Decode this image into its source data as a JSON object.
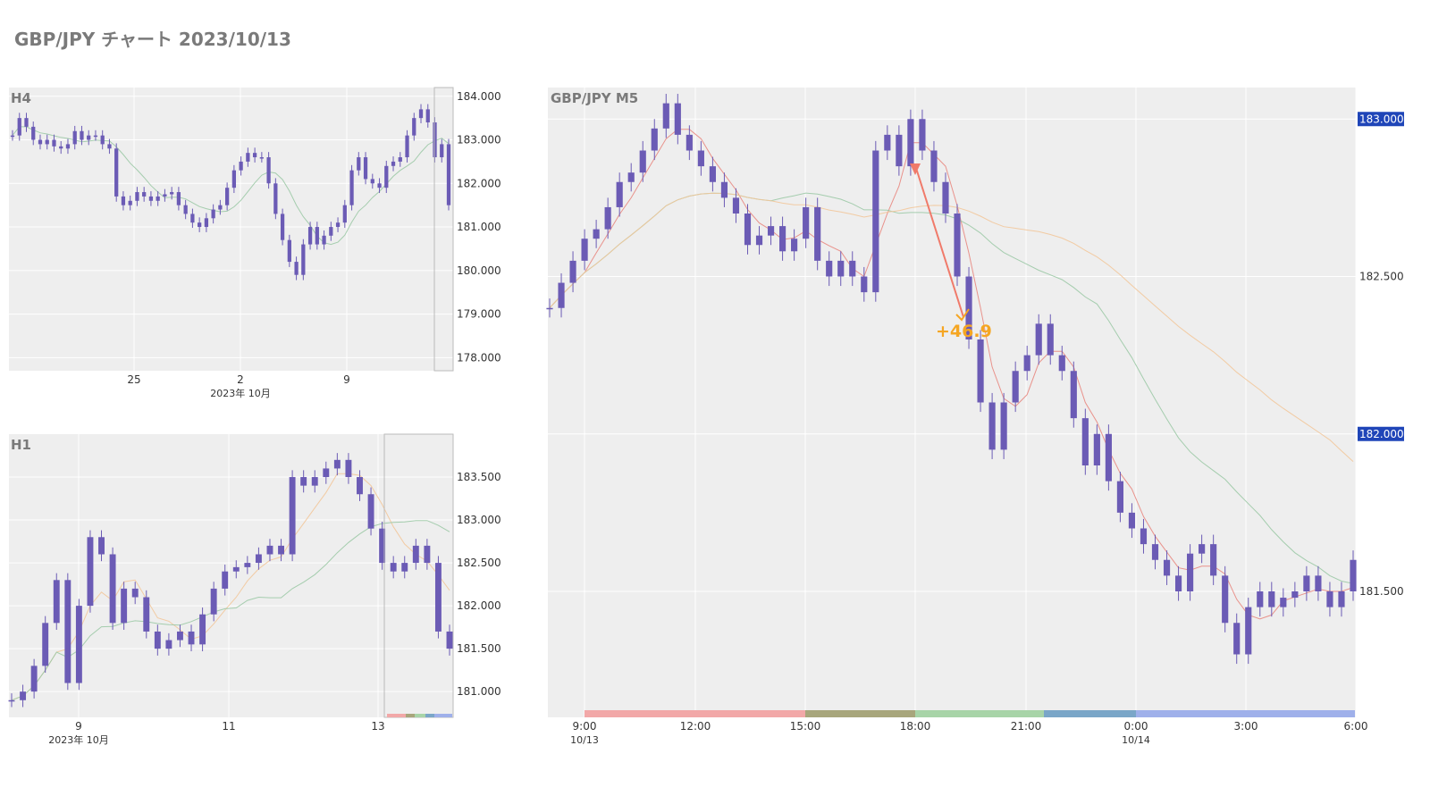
{
  "page": {
    "title": "GBP/JPY チャート 2023/10/13"
  },
  "colors": {
    "candle": "#6b5bb5",
    "plot_bg": "#eeeeee",
    "grid": "#ffffff",
    "ma_fast": "#e8877f",
    "ma_mid": "#9cc9a6",
    "ma_slow": "#f2c79a",
    "price_badge": "#1f45b8",
    "annotation": "#f5a623",
    "trade_line": "#f07a6a"
  },
  "chart_data": [
    {
      "panel": "H4",
      "type": "candlestick",
      "title": "H4",
      "x_ticks": [
        "25",
        "2",
        "9"
      ],
      "x_subtitle": "2023年 10月",
      "y_ticks": [
        "184.000",
        "183.000",
        "182.000",
        "181.000",
        "180.000",
        "179.000",
        "178.000"
      ],
      "ylim": [
        177.7,
        184.2
      ],
      "series": [
        {
          "values": [
            183.1,
            183.5,
            183.3,
            183.0,
            182.9,
            183.0,
            182.85,
            182.8,
            182.9,
            183.2,
            183.0,
            183.1,
            183.1,
            182.9,
            182.8,
            181.7,
            181.5,
            181.6,
            181.8,
            181.7,
            181.6,
            181.7,
            181.75,
            181.8,
            181.5,
            181.3,
            181.1,
            181.0,
            181.2,
            181.4,
            181.5,
            181.9,
            182.3,
            182.5,
            182.7,
            182.6,
            182.6,
            182.0,
            181.3,
            180.7,
            180.2,
            179.9,
            180.6,
            181.0,
            180.6,
            180.8,
            181.0,
            181.1,
            181.5,
            182.3,
            182.6,
            182.1,
            182.0,
            181.9,
            182.4,
            182.5,
            182.6,
            183.1,
            183.5,
            183.7,
            183.4,
            182.6,
            182.9,
            181.5
          ]
        }
      ]
    },
    {
      "panel": "H1",
      "type": "candlestick",
      "title": "H1",
      "x_ticks": [
        "9",
        "11",
        "13"
      ],
      "x_subtitle": "2023年 10月",
      "y_ticks": [
        "183.500",
        "183.000",
        "182.500",
        "182.000",
        "181.500",
        "181.000"
      ],
      "ylim": [
        180.7,
        184.0
      ],
      "series": [
        {
          "values": [
            180.9,
            181.0,
            181.3,
            181.8,
            182.3,
            181.1,
            182.0,
            182.8,
            182.6,
            181.8,
            182.2,
            182.1,
            181.7,
            181.5,
            181.6,
            181.7,
            181.55,
            181.9,
            182.2,
            182.4,
            182.45,
            182.5,
            182.6,
            182.7,
            182.6,
            183.5,
            183.4,
            183.5,
            183.6,
            183.7,
            183.5,
            183.3,
            182.9,
            182.5,
            182.4,
            182.5,
            182.7,
            182.5,
            181.7,
            181.5
          ]
        }
      ]
    },
    {
      "panel": "M5",
      "type": "candlestick",
      "title": "GBP/JPY M5",
      "x_ticks": [
        "9:00",
        "12:00",
        "15:00",
        "18:00",
        "21:00",
        "0:00",
        "3:00",
        "6:00"
      ],
      "x_date_labels": [
        "10/13",
        "10/14"
      ],
      "y_ticks": [
        "183.000",
        "182.500",
        "182.000",
        "181.500"
      ],
      "price_badges": [
        "183.000",
        "182.000"
      ],
      "ylim": [
        181.1,
        183.1
      ],
      "series": [
        {
          "values": [
            182.4,
            182.48,
            182.55,
            182.62,
            182.65,
            182.72,
            182.8,
            182.83,
            182.9,
            182.97,
            183.05,
            182.95,
            182.9,
            182.85,
            182.8,
            182.75,
            182.7,
            182.6,
            182.63,
            182.66,
            182.58,
            182.62,
            182.72,
            182.55,
            182.5,
            182.55,
            182.5,
            182.45,
            182.9,
            182.95,
            182.85,
            183.0,
            182.9,
            182.8,
            182.7,
            182.5,
            182.3,
            182.1,
            181.95,
            182.1,
            182.2,
            182.25,
            182.35,
            182.25,
            182.2,
            182.05,
            181.9,
            182.0,
            181.85,
            181.75,
            181.7,
            181.65,
            181.6,
            181.55,
            181.5,
            181.62,
            181.65,
            181.55,
            181.4,
            181.3,
            181.45,
            181.5,
            181.45,
            181.48,
            181.5,
            181.55,
            181.5,
            181.45,
            181.5,
            181.6
          ]
        }
      ],
      "annotation": "+46.9"
    }
  ],
  "session_bands": [
    "#f2a8a8",
    "#a8a67c",
    "#a8d4a8",
    "#7aa6c8",
    "#9fb0ea"
  ]
}
